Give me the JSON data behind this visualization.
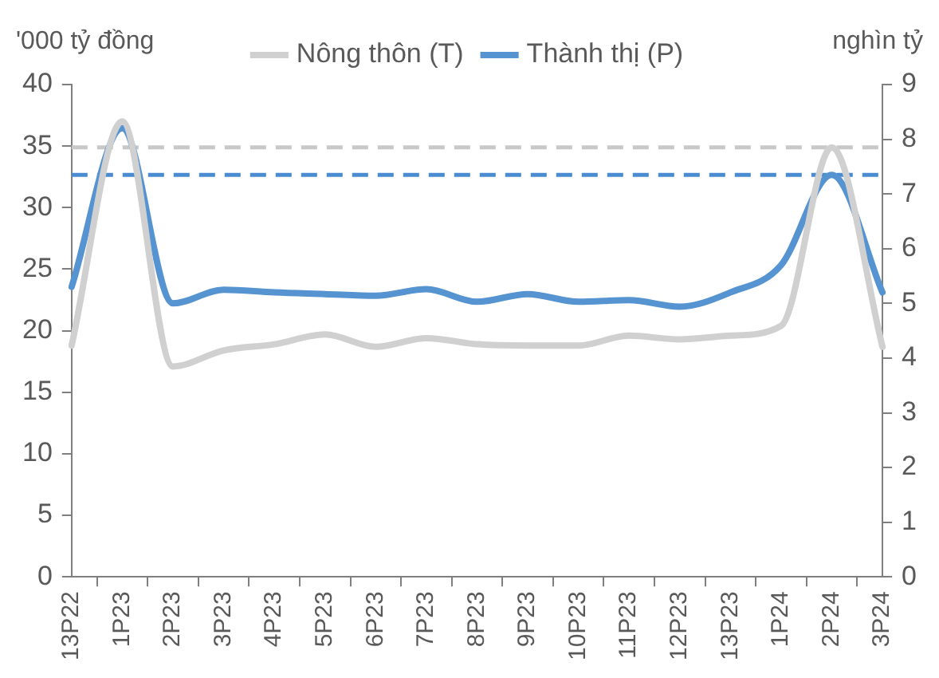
{
  "chart_data": {
    "type": "line",
    "ylabel": "'000 tỷ đồng",
    "y2label": "nghìn tỷ",
    "categories": [
      "13P22",
      "1P23",
      "2P23",
      "3P23",
      "4P23",
      "5P23",
      "6P23",
      "7P23",
      "8P23",
      "9P23",
      "10P23",
      "11P23",
      "12P23",
      "13P23",
      "1P24",
      "2P24",
      "3P24"
    ],
    "series": [
      {
        "name": "Nông thôn (T)",
        "color": "#d0d0d0",
        "values": [
          18.8,
          37.0,
          17.1,
          18.4,
          18.9,
          19.7,
          18.7,
          19.4,
          18.9,
          18.8,
          18.8,
          19.6,
          19.3,
          19.6,
          20.4,
          34.9,
          18.7
        ]
      },
      {
        "name": "Thành thị (P)",
        "color": "#5593d1",
        "axis": "y2",
        "values": [
          5.3,
          8.2,
          5.0,
          5.25,
          5.2,
          5.17,
          5.14,
          5.26,
          5.03,
          5.17,
          5.03,
          5.06,
          4.94,
          5.2,
          5.7,
          7.35,
          5.2
        ]
      }
    ],
    "ylim": [
      0,
      40
    ],
    "yticks": [
      0,
      5,
      10,
      15,
      20,
      25,
      30,
      35,
      40
    ],
    "y2lim": [
      0,
      9
    ],
    "y2ticks": [
      0,
      1,
      2,
      3,
      4,
      5,
      6,
      7,
      8,
      9
    ],
    "ref_lines": [
      {
        "axis": "y",
        "value": 34.9,
        "color": "#c8c8c8",
        "line_style": "dashed"
      },
      {
        "axis": "y2",
        "value": 7.35,
        "color": "#4a8ad0",
        "line_style": "dashed"
      }
    ],
    "legend": "top",
    "grid": false,
    "marker": "none",
    "line_style": "solid"
  }
}
